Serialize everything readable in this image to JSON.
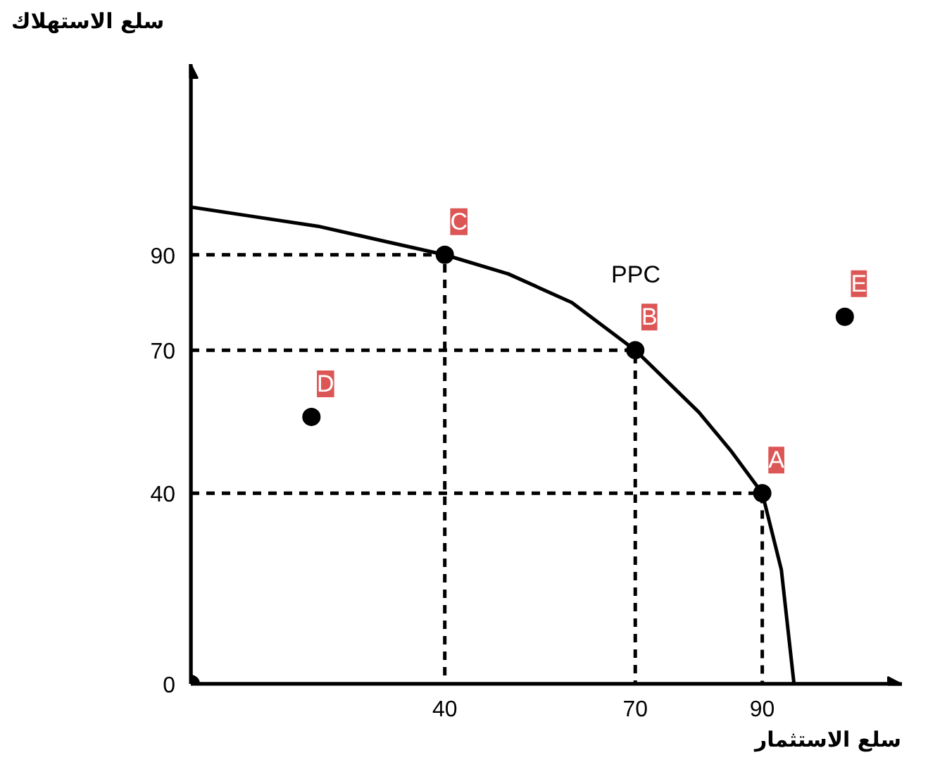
{
  "chart_data": {
    "type": "line",
    "xlabel": "سلع الاستثمار",
    "ylabel": "سلع الاستهلاك",
    "xlim": [
      0,
      112
    ],
    "ylim": [
      0,
      130
    ],
    "xticks": [
      40,
      70,
      90
    ],
    "yticks": [
      0,
      40,
      70,
      90
    ],
    "grid": false,
    "legend": false,
    "series": [
      {
        "name": "PPC",
        "color": "#000000",
        "line_style": "solid",
        "marker": "none",
        "x": [
          0,
          10,
          20,
          30,
          40,
          50,
          60,
          70,
          80,
          85,
          90,
          93,
          95
        ],
        "values": [
          100,
          98,
          96,
          93,
          90,
          86,
          80,
          70,
          57,
          49,
          40,
          24,
          0
        ]
      },
      {
        "color": "#000000",
        "line_style": "dashed",
        "marker": "none",
        "x": [
          0,
          40,
          40
        ],
        "values": [
          90,
          90,
          0
        ]
      },
      {
        "color": "#000000",
        "line_style": "dashed",
        "marker": "none",
        "x": [
          0,
          70,
          70
        ],
        "values": [
          70,
          70,
          0
        ]
      },
      {
        "color": "#000000",
        "line_style": "dashed",
        "marker": "none",
        "x": [
          0,
          90,
          90
        ],
        "values": [
          40,
          40,
          0
        ]
      },
      {
        "type": "scatter",
        "color": "#000000",
        "marker": "circle",
        "x": [
          90,
          70,
          40,
          19,
          103,
          0
        ],
        "values": [
          40,
          70,
          90,
          56,
          77,
          0
        ]
      }
    ],
    "annotations": [
      {
        "text": "A",
        "x": 90,
        "y": 40
      },
      {
        "text": "B",
        "x": 70,
        "y": 70
      },
      {
        "text": "C",
        "x": 40,
        "y": 90
      },
      {
        "text": "D",
        "x": 19,
        "y": 56
      },
      {
        "text": "E",
        "x": 103,
        "y": 77
      }
    ]
  }
}
